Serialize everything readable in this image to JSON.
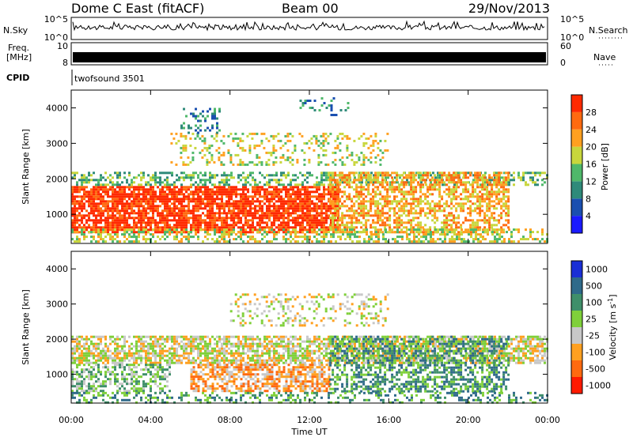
{
  "header": {
    "station": "Dome C East (fitACF)",
    "beam": "Beam 00",
    "date": "29/Nov/2013"
  },
  "top_panels": {
    "nsky": {
      "label": "N.Sky",
      "tick_top": "10^5",
      "tick_bottom": "10^0"
    },
    "nsearch": {
      "label": "N.Search",
      "tick_top": "10^5",
      "tick_bottom": "10^0"
    },
    "freq": {
      "label_line1": "Freq.",
      "label_line2": "[MHz]",
      "tick_top": "10",
      "tick_bottom": "8"
    },
    "nave": {
      "label": "Nave",
      "tick_top": "60",
      "tick_bottom": "0"
    },
    "cpid": {
      "label": "CPID",
      "value": "twofsound 3501"
    }
  },
  "chart_data": [
    {
      "type": "heatmap",
      "title": "",
      "xlabel": "",
      "ylabel": "Slant Range [km]",
      "x_ticks": [
        "00:00",
        "04:00",
        "08:00",
        "12:00",
        "16:00",
        "20:00",
        "00:00"
      ],
      "xlim_hours": [
        0,
        24
      ],
      "y_ticks": [
        1000,
        2000,
        3000,
        4000
      ],
      "ylim": [
        180,
        4500
      ],
      "colorbar": {
        "label": "Power [dB]",
        "ticks": [
          4,
          8,
          12,
          16,
          20,
          24,
          28
        ],
        "range": [
          0,
          32
        ],
        "colors": [
          "#1a1aff",
          "#1a4fb0",
          "#2f8a7a",
          "#4fb86a",
          "#c8d63c",
          "#ffa020",
          "#ff6a10",
          "#ff2a00"
        ]
      },
      "regions": [
        {
          "t0": 0.0,
          "t1": 13.5,
          "r0": 500,
          "r1": 1800,
          "level": 26,
          "density": 0.8
        },
        {
          "t0": 0.0,
          "t1": 24.0,
          "r0": 1800,
          "r1": 2200,
          "level": 10,
          "density": 0.45
        },
        {
          "t0": 5.0,
          "t1": 16.0,
          "r0": 2400,
          "r1": 3300,
          "level": 14,
          "density": 0.25
        },
        {
          "t0": 13.0,
          "t1": 22.0,
          "r0": 500,
          "r1": 2200,
          "level": 20,
          "density": 0.6
        },
        {
          "t0": 0.0,
          "t1": 24.0,
          "r0": 200,
          "r1": 600,
          "level": 14,
          "density": 0.45
        },
        {
          "t0": 5.5,
          "t1": 7.5,
          "r0": 3300,
          "r1": 4000,
          "level": 8,
          "density": 0.25
        },
        {
          "t0": 11.5,
          "t1": 14.0,
          "r0": 3800,
          "r1": 4300,
          "level": 8,
          "density": 0.2
        }
      ]
    },
    {
      "type": "heatmap",
      "title": "",
      "xlabel": "Time UT",
      "ylabel": "Slant Range [km]",
      "x_ticks": [
        "00:00",
        "04:00",
        "08:00",
        "12:00",
        "16:00",
        "20:00",
        "00:00"
      ],
      "xlim_hours": [
        0,
        24
      ],
      "y_ticks": [
        1000,
        2000,
        3000,
        4000
      ],
      "ylim": [
        180,
        4500
      ],
      "colorbar": {
        "label": "Velocity [m s^-1]",
        "ticks": [
          "1000",
          "500",
          "100",
          "25",
          "-25",
          "-100",
          "-500",
          "-1000"
        ],
        "colors": [
          "#1a2fd6",
          "#2f6a8a",
          "#3f8f6a",
          "#7fd03a",
          "#c8c8c8",
          "#ffa020",
          "#ff6a10",
          "#ff1a00"
        ]
      },
      "regions": [
        {
          "t0": 0.0,
          "t1": 24.0,
          "r0": 1300,
          "r1": 2100,
          "velocity_class": 4,
          "density": 0.7
        },
        {
          "t0": 6.0,
          "t1": 13.0,
          "r0": 500,
          "r1": 1300,
          "velocity_class": 5,
          "density": 0.65
        },
        {
          "t0": 0.0,
          "t1": 5.0,
          "r0": 500,
          "r1": 1300,
          "velocity_class": 3,
          "density": 0.55
        },
        {
          "t0": 13.0,
          "t1": 22.0,
          "r0": 500,
          "r1": 2100,
          "velocity_class": 2,
          "density": 0.55
        },
        {
          "t0": 8.0,
          "t1": 16.0,
          "r0": 2400,
          "r1": 3300,
          "velocity_class": 4,
          "density": 0.25
        },
        {
          "t0": 0.0,
          "t1": 24.0,
          "r0": 200,
          "r1": 500,
          "velocity_class": 2,
          "density": 0.35
        }
      ]
    }
  ]
}
